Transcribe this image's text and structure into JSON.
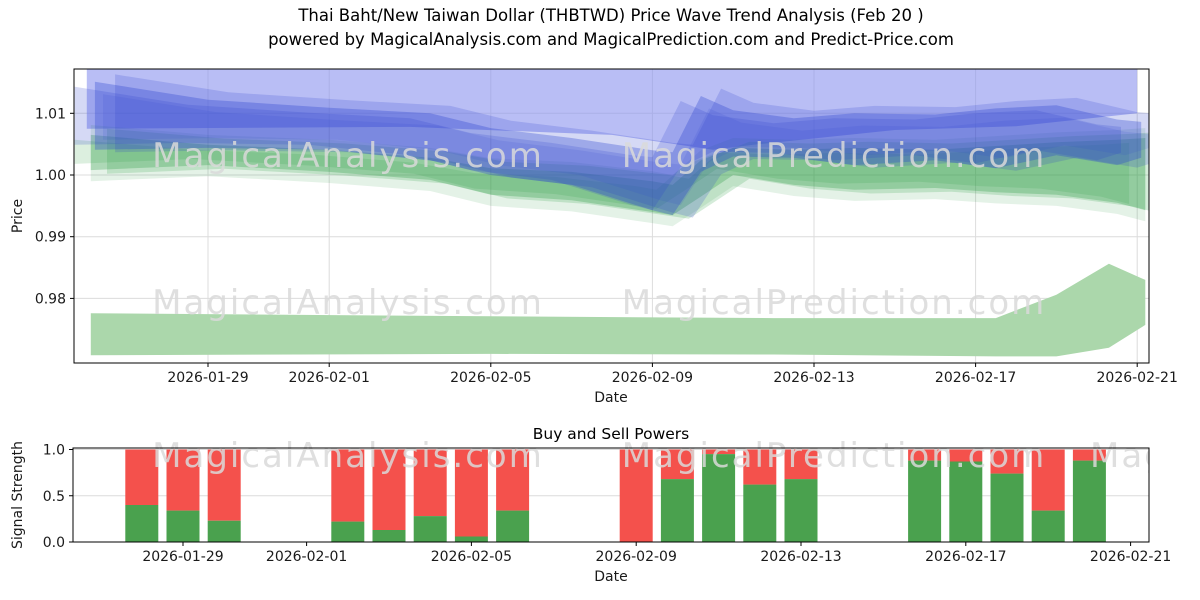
{
  "title": {
    "line1": "Thai Baht/New Taiwan Dollar (THBTWD) Price Wave Trend Analysis (Feb 20 )",
    "line2": "powered by MagicalAnalysis.com and MagicalPrediction.com and Predict-Price.com"
  },
  "watermarks": {
    "analysis": "MagicalAnalysis.com",
    "prediction": "MagicalPrediction.com"
  },
  "colors": {
    "sell_red": "#f4514c",
    "buy_green": "#4aa14e",
    "wave_blue": "#2c43cf",
    "wave_green": "#2f9e44",
    "band_lavender": "#8a93ee",
    "band_light_green": "#abd7ab",
    "grid": "#dcdcdc",
    "axis": "#000000",
    "tick_text": "#1a1a1a",
    "watermark": "#d9d9d9"
  },
  "chart_data": [
    {
      "type": "area",
      "name": "price_wave",
      "xlabel": "Date",
      "ylabel": "Price",
      "ylim": [
        0.9695,
        1.0172
      ],
      "x_day_origin": "2026-01-26",
      "xticks": [
        {
          "label": "2026-01-29",
          "day": 3
        },
        {
          "label": "2026-02-01",
          "day": 6
        },
        {
          "label": "2026-02-05",
          "day": 10
        },
        {
          "label": "2026-02-09",
          "day": 14
        },
        {
          "label": "2026-02-13",
          "day": 18
        },
        {
          "label": "2026-02-17",
          "day": 22
        },
        {
          "label": "2026-02-21",
          "day": 26
        }
      ],
      "yticks": [
        {
          "label": "1.01",
          "value": 1.01
        },
        {
          "label": "1.00",
          "value": 1.0
        },
        {
          "label": "0.99",
          "value": 0.99
        },
        {
          "label": "0.98",
          "value": 0.98
        }
      ],
      "bands": {
        "lavender": {
          "days": [
            0,
            8,
            13,
            15.5,
            16.5,
            20,
            23,
            26
          ],
          "upper": [
            1.0172,
            1.0172,
            1.0172,
            1.0172,
            1.0172,
            1.0172,
            1.0172,
            1.0172
          ],
          "lower": [
            1.0075,
            1.0078,
            1.0065,
            1.0041,
            1.0049,
            1.0073,
            1.0079,
            1.01
          ]
        },
        "blue": {
          "days": [
            0.2,
            3,
            6,
            8.5,
            10,
            12,
            14,
            14.5,
            15.2,
            16,
            17.5,
            19,
            21,
            22.5,
            24,
            25.5,
            26.1
          ],
          "upper": [
            1.0151,
            1.0122,
            1.0109,
            1.01,
            1.0076,
            1.006,
            1.004,
            1.0037,
            1.0128,
            1.0105,
            1.0092,
            1.01,
            1.0098,
            1.0108,
            1.0113,
            1.009,
            1.0086
          ],
          "lower": [
            1.0041,
            1.0044,
            1.0041,
            1.0024,
            1.0,
            0.9984,
            0.9943,
            0.9935,
            1.0005,
            1.003,
            1.0028,
            1.0016,
            1.0024,
            1.0011,
            1.0032,
            1.0016,
            1.0028
          ]
        },
        "green": {
          "days": [
            0.1,
            3,
            6,
            8.5,
            10,
            12,
            14,
            14.5,
            15.2,
            16,
            17.5,
            19,
            21,
            22.5,
            24,
            25.5,
            26.2
          ],
          "upper": [
            1.0065,
            1.0049,
            1.0041,
            1.0028,
            1.0011,
            1.0005,
            0.999,
            0.9984,
            1.0024,
            1.0044,
            1.0041,
            1.0044,
            1.0041,
            1.0047,
            1.0053,
            1.0057,
            1.006
          ],
          "lower": [
            1.0008,
            1.0016,
            1.0005,
            0.9992,
            0.9968,
            0.9959,
            0.994,
            0.9935,
            0.9965,
            1.0,
            0.9984,
            0.9976,
            0.9979,
            0.9972,
            0.9968,
            0.9955,
            0.9943
          ]
        },
        "bottom": {
          "days": [
            0.1,
            10,
            17,
            22.5,
            24,
            25.3,
            26.2
          ],
          "upper": [
            0.9776,
            0.9771,
            0.9768,
            0.9768,
            0.9806,
            0.9856,
            0.983
          ],
          "lower": [
            0.9708,
            0.971,
            0.9709,
            0.9706,
            0.9706,
            0.972,
            0.9757
          ]
        }
      }
    },
    {
      "type": "bar",
      "name": "buy_sell_powers",
      "title": "Buy and Sell Powers",
      "xlabel": "Date",
      "ylabel": "Signal Strength",
      "ylim": [
        0,
        1.05
      ],
      "x_day_origin": "2026-01-29",
      "xticks": [
        {
          "label": "2026-01-29",
          "day": 0
        },
        {
          "label": "2026-02-01",
          "day": 3
        },
        {
          "label": "2026-02-05",
          "day": 7
        },
        {
          "label": "2026-02-09",
          "day": 11
        },
        {
          "label": "2026-02-13",
          "day": 15
        },
        {
          "label": "2026-02-17",
          "day": 19
        },
        {
          "label": "2026-02-21",
          "day": 23
        }
      ],
      "yticks": [
        {
          "label": "1.0",
          "value": 1.0
        },
        {
          "label": "0.5",
          "value": 0.5
        },
        {
          "label": "0.0",
          "value": 0.0
        }
      ],
      "series": [
        {
          "name": "buy",
          "color_key": "buy_green"
        },
        {
          "name": "sell",
          "color_key": "sell_red"
        }
      ],
      "bars": [
        {
          "date": "2026-01-28",
          "day": -1,
          "buy": 0.4,
          "sell": 0.6
        },
        {
          "date": "2026-01-29",
          "day": 0,
          "buy": 0.34,
          "sell": 0.66
        },
        {
          "date": "2026-01-30",
          "day": 1,
          "buy": 0.23,
          "sell": 0.77
        },
        {
          "date": "2026-02-02",
          "day": 4,
          "buy": 0.22,
          "sell": 0.78
        },
        {
          "date": "2026-02-03",
          "day": 5,
          "buy": 0.13,
          "sell": 0.87
        },
        {
          "date": "2026-02-04",
          "day": 6,
          "buy": 0.28,
          "sell": 0.72
        },
        {
          "date": "2026-02-05",
          "day": 7,
          "buy": 0.06,
          "sell": 0.94
        },
        {
          "date": "2026-02-06",
          "day": 8,
          "buy": 0.34,
          "sell": 0.66
        },
        {
          "date": "2026-02-09",
          "day": 11,
          "buy": 0.0,
          "sell": 1.0
        },
        {
          "date": "2026-02-10",
          "day": 12,
          "buy": 0.68,
          "sell": 0.32
        },
        {
          "date": "2026-02-11",
          "day": 13,
          "buy": 0.95,
          "sell": 0.05
        },
        {
          "date": "2026-02-12",
          "day": 14,
          "buy": 0.62,
          "sell": 0.38
        },
        {
          "date": "2026-02-13",
          "day": 15,
          "buy": 0.68,
          "sell": 0.32
        },
        {
          "date": "2026-02-16",
          "day": 18,
          "buy": 0.88,
          "sell": 0.12
        },
        {
          "date": "2026-02-17",
          "day": 19,
          "buy": 0.87,
          "sell": 0.13
        },
        {
          "date": "2026-02-18",
          "day": 20,
          "buy": 0.74,
          "sell": 0.26
        },
        {
          "date": "2026-02-19",
          "day": 21,
          "buy": 0.34,
          "sell": 0.66
        },
        {
          "date": "2026-02-20",
          "day": 22,
          "buy": 0.88,
          "sell": 0.12
        }
      ]
    }
  ]
}
